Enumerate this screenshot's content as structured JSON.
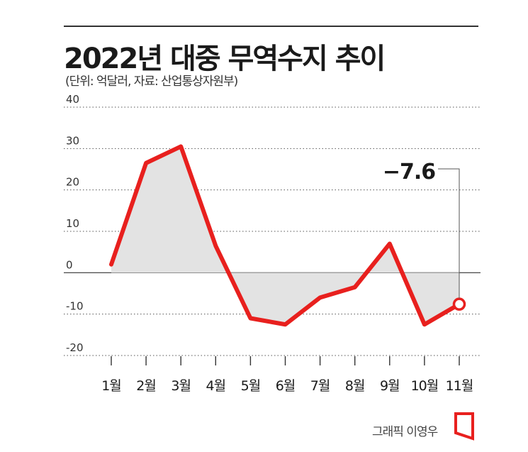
{
  "header": {
    "title": "2022년 대중 무역수지 추이",
    "subtitle": "(단위: 억달러, 자료: 산업통상자원부)"
  },
  "credit": {
    "text": "그래픽 이영우"
  },
  "colors": {
    "line": "#e8201e",
    "area": "#e3e3e3",
    "grid": "#555555",
    "text": "#1a1a1a"
  },
  "chart_data": {
    "type": "area",
    "title": "2022년 대중 무역수지 추이",
    "x": [
      "1월",
      "2월",
      "3월",
      "4월",
      "5월",
      "6월",
      "7월",
      "8월",
      "9월",
      "10월",
      "11월"
    ],
    "y": [
      2,
      26.5,
      30.5,
      6.5,
      -11,
      -12.5,
      -6,
      -3.5,
      7,
      -12.5,
      -7.6
    ],
    "ylim": [
      -20,
      40
    ],
    "yticks": [
      40,
      30,
      20,
      10,
      0,
      -10,
      -20
    ],
    "ytick_labels": [
      "40",
      "30",
      "20",
      "10",
      "0",
      "-10",
      "-20"
    ],
    "annotation": {
      "label": "−7.6",
      "index": 10
    },
    "grid": true,
    "legend": "none"
  }
}
